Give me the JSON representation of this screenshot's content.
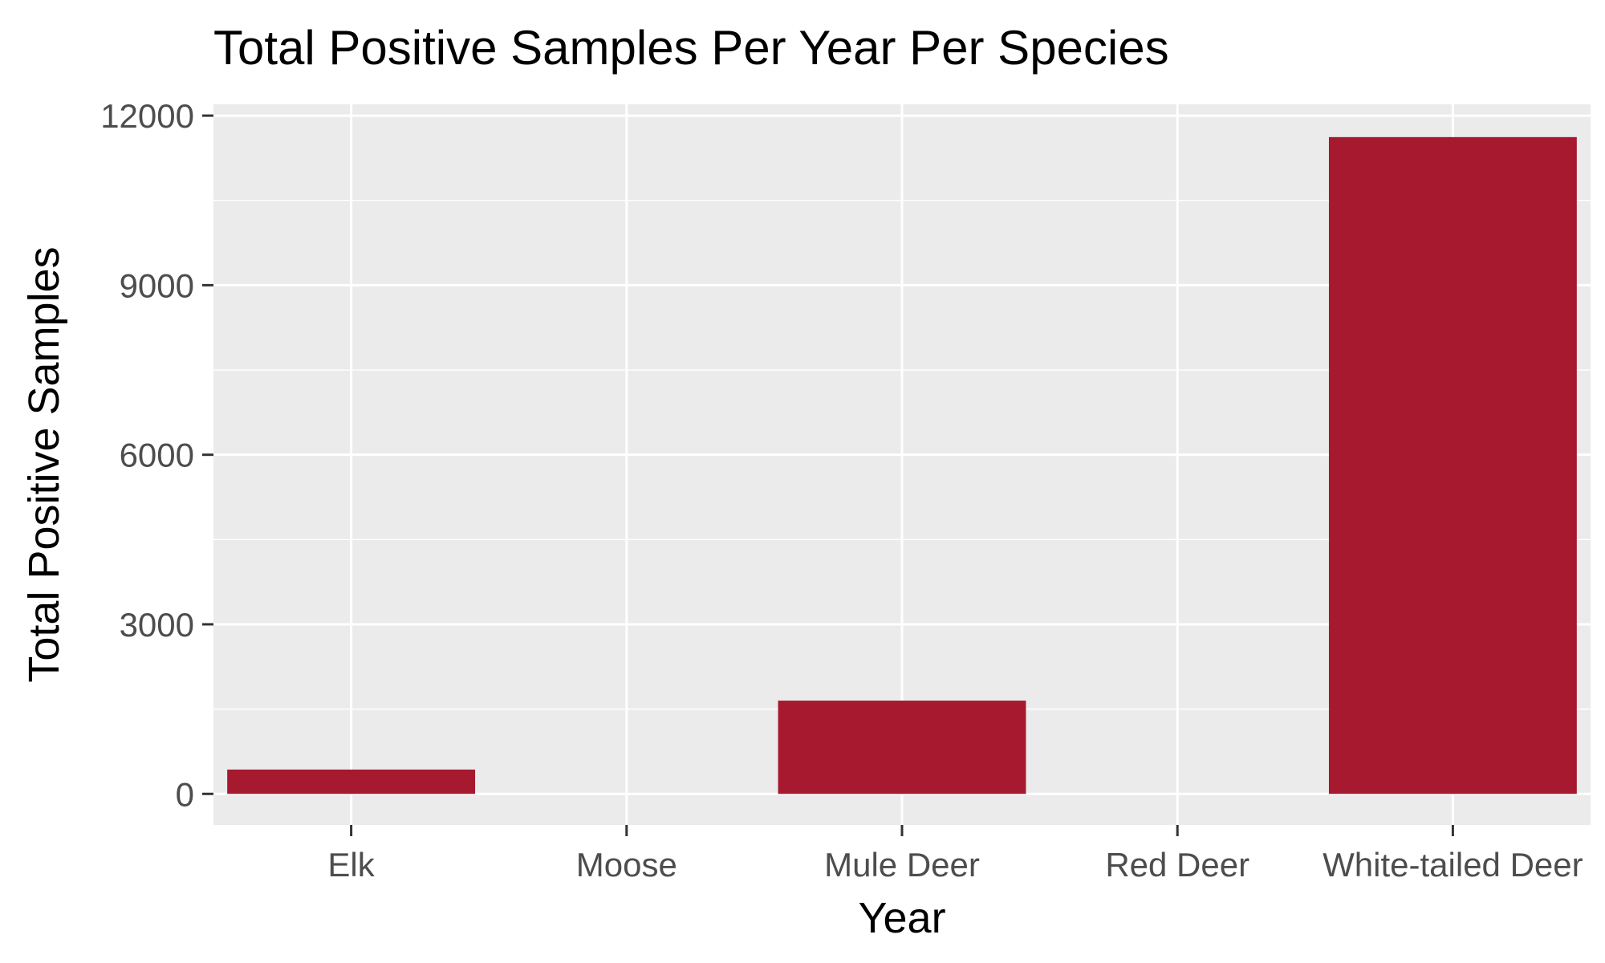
{
  "chart_data": {
    "type": "bar",
    "title": "Total Positive Samples Per Year Per Species",
    "xlabel": "Year",
    "ylabel": "Total Positive Samples",
    "categories": [
      "Elk",
      "Moose",
      "Mule Deer",
      "Red Deer",
      "White-tailed Deer"
    ],
    "values": [
      430,
      0,
      1650,
      0,
      11620
    ],
    "ylim": [
      -550,
      12200
    ],
    "yticks": [
      0,
      3000,
      6000,
      9000,
      12000
    ],
    "ytick_labels": [
      "0",
      "3000",
      "6000",
      "9000",
      "12000"
    ],
    "grid": true,
    "legend": "none",
    "colors": {
      "bar": "#a6192e",
      "panel_background": "#ebebeb",
      "grid_line": "#ffffff",
      "tick_text": "#4d4d4d",
      "tick_mark": "#333333"
    }
  }
}
